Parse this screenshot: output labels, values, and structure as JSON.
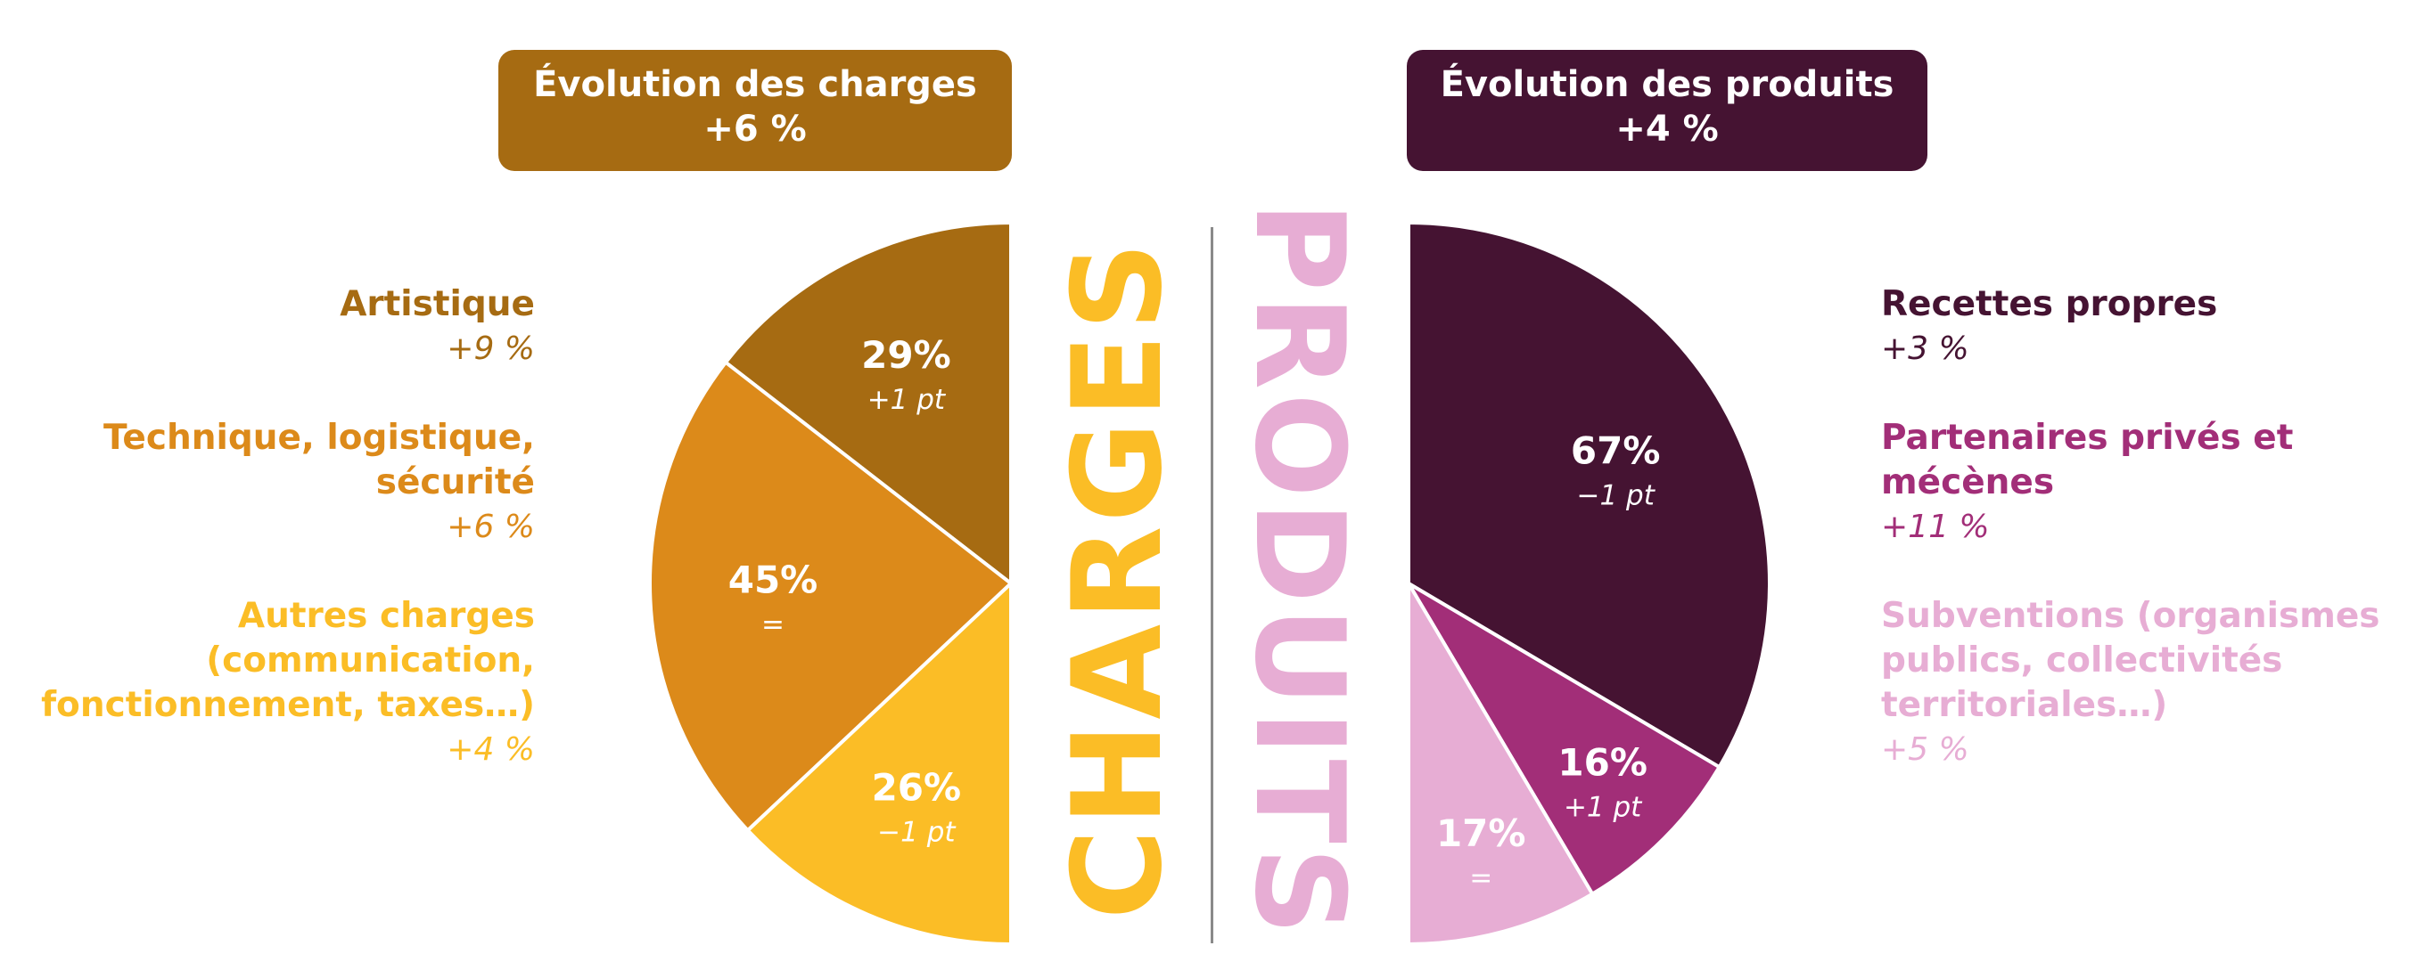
{
  "colors": {
    "artistique": "#A66B12",
    "technique": "#DC8A1A",
    "autres": "#FBBD26",
    "recettes": "#451332",
    "partenaires": "#A22E78",
    "subventions": "#E7ADD4",
    "divider": "#8a8a8a"
  },
  "charges": {
    "banner_line1": "Évolution des charges",
    "banner_line2": "+6 %",
    "vertical_label": "CHARGES",
    "legend": [
      {
        "label_lines": [
          "Artistique"
        ],
        "change": "+9 %",
        "color_key": "artistique"
      },
      {
        "label_lines": [
          "Technique, logistique,",
          "sécurité"
        ],
        "change": "+6 %",
        "color_key": "technique"
      },
      {
        "label_lines": [
          "Autres charges",
          "(communication,",
          "fonctionnement, taxes…)"
        ],
        "change": "+4 %",
        "color_key": "autres"
      }
    ]
  },
  "produits": {
    "banner_line1": "Évolution des produits",
    "banner_line2": "+4 %",
    "vertical_label": "PRODUITS",
    "legend": [
      {
        "label_lines": [
          "Recettes propres"
        ],
        "change": "+3 %",
        "color_key": "recettes"
      },
      {
        "label_lines": [
          "Partenaires privés et",
          "mécènes"
        ],
        "change": "+11 %",
        "color_key": "partenaires"
      },
      {
        "label_lines": [
          "Subventions (organismes",
          "publics, collectivités",
          "territoriales…)"
        ],
        "change": "+5 %",
        "color_key": "subventions"
      }
    ]
  },
  "chart_data": [
    {
      "type": "pie",
      "half": "left",
      "slices": [
        {
          "label": "Artistique",
          "value": 29,
          "value_label": "29%",
          "change_label": "+1 pt",
          "color_key": "artistique"
        },
        {
          "label": "Technique, logistique, sécurité",
          "value": 45,
          "value_label": "45%",
          "change_label": "=",
          "color_key": "technique"
        },
        {
          "label": "Autres charges (communication, fonctionnement, taxes…)",
          "value": 26,
          "value_label": "26%",
          "change_label": "−1 pt",
          "color_key": "autres"
        }
      ]
    },
    {
      "type": "pie",
      "half": "right",
      "slices": [
        {
          "label": "Recettes propres",
          "value": 67,
          "value_label": "67%",
          "change_label": "−1 pt",
          "color_key": "recettes"
        },
        {
          "label": "Partenaires privés et mécènes",
          "value": 16,
          "value_label": "16%",
          "change_label": "+1 pt",
          "color_key": "partenaires"
        },
        {
          "label": "Subventions (organismes publics, collectivités territoriales…)",
          "value": 17,
          "value_label": "17%",
          "change_label": "=",
          "color_key": "subventions"
        }
      ]
    }
  ]
}
